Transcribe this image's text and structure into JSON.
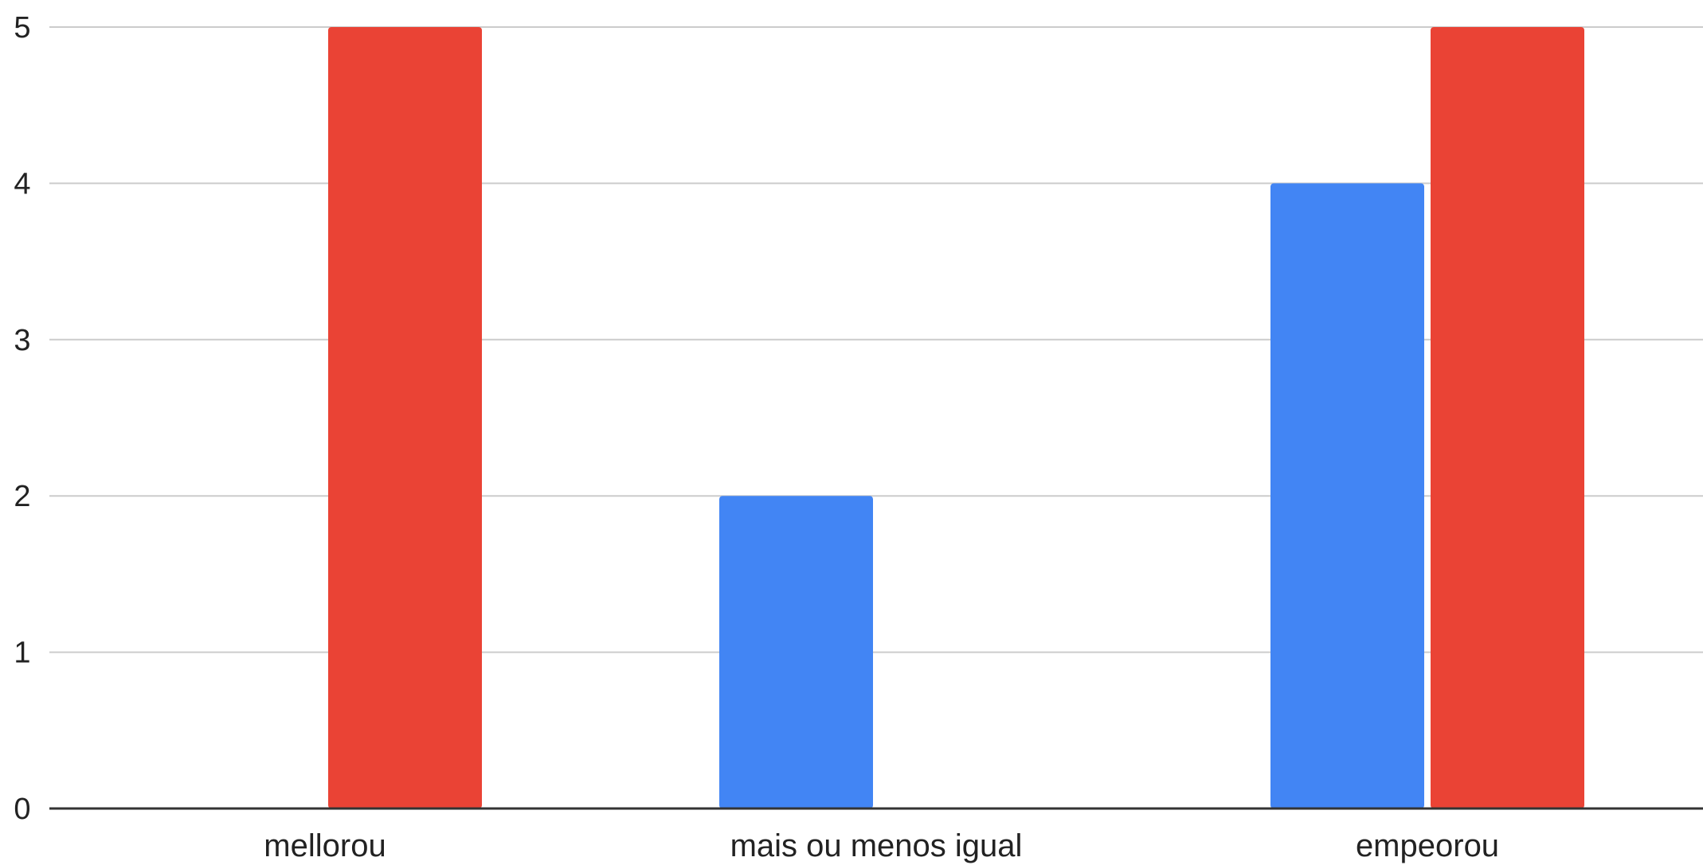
{
  "chart_data": {
    "type": "bar",
    "categories": [
      "mellorou",
      "mais ou menos igual",
      "empeorou"
    ],
    "series": [
      {
        "color": "#4285f4",
        "values": [
          0,
          2,
          4
        ]
      },
      {
        "color": "#ea4335",
        "values": [
          5,
          0,
          5
        ]
      }
    ],
    "ylim": [
      0,
      5
    ],
    "yticks": [
      "0",
      "1",
      "2",
      "3",
      "4",
      "5"
    ],
    "grid": true,
    "legend": "none",
    "title": "",
    "xlabel": "",
    "ylabel": ""
  }
}
